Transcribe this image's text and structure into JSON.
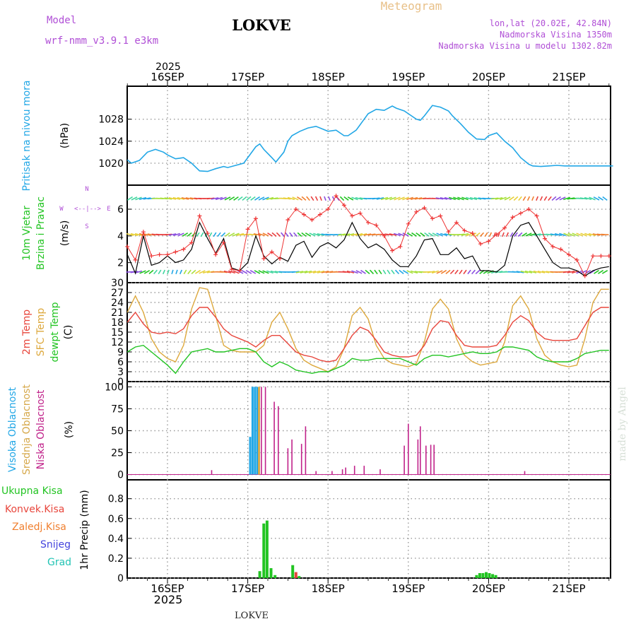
{
  "header": {
    "model_label": "Model",
    "model_name": "wrf-nmm_v3.9.1  e3km",
    "location": "LOKVE",
    "title": "Meteogram",
    "coords": "lon,lat (20.02E, 42.84N)",
    "elevation": "Nadmorska Visina 1350m",
    "model_elevation": "Nadmorska Visina u modelu 1302.82m"
  },
  "footer": {
    "location": "LOKVE",
    "credit": "made by Angel",
    "year": "2025"
  },
  "colors": {
    "pressure": "#22a7e6",
    "temp2m": "#e8463c",
    "sfc": "#dda83c",
    "dewpt": "#22c422",
    "gust": "#ee3333",
    "wind": "#000000",
    "high_cloud": "#22a7e6",
    "mid_cloud": "#d6a84a",
    "low_cloud": "#c0228a",
    "total_precip": "#22c422",
    "conv_precip": "#e8463c",
    "frz_precip": "#f08030",
    "snow": "#4444dd",
    "grad": "#22c4b4",
    "label_purple": "#b04fd6"
  },
  "panels": {
    "pressure": {
      "label_main": "Pritisak na nivou mora",
      "label_unit": "(hPa)"
    },
    "wind": {
      "label_main": "10m Vjetar",
      "label_sub": "Brzina i Pravac",
      "label_unit": "(m/s)",
      "compass_n": "N",
      "compass_w": "W",
      "compass_e": "E",
      "compass_s": "S",
      "compass_mark": "<--|-->"
    },
    "temp": {
      "label_2m": "2m Temp",
      "label_sfc": "SFC Temp",
      "label_dew": "dewpt Temp",
      "label_unit": "(C)"
    },
    "cloud": {
      "label_high": "Visoka Oblacnost",
      "label_mid": "Srednja Oblacnost",
      "label_low": "Niska Oblacnost",
      "label_unit": "(%)"
    },
    "precip": {
      "label_total": "Ukupna Kisa",
      "label_conv": "Konvek.Kisa",
      "label_frz": "Zaledj.Kisa",
      "label_snow": "Snijeg",
      "label_grad": "Grad",
      "label_unit": "1hr Precip (mm)"
    }
  },
  "chart_data": [
    {
      "type": "line",
      "title": "Pritisak na nivou mora",
      "ylabel": "(hPa)",
      "categories": [
        "16SEP",
        "17SEP",
        "18SEP",
        "19SEP",
        "20SEP",
        "21SEP"
      ],
      "x_start_day": -0.5,
      "x_end_day": 5.55,
      "ylim": [
        1016,
        1034
      ],
      "yticks": [
        1020,
        1024,
        1028
      ],
      "series": [
        {
          "name": "Pritisak",
          "x": [
            -0.5,
            -0.45,
            -0.35,
            -0.25,
            -0.15,
            -0.05,
            0,
            0.1,
            0.2,
            0.3,
            0.4,
            0.5,
            0.6,
            0.7,
            0.75,
            0.85,
            0.95,
            1,
            1.1,
            1.15,
            1.2,
            1.3,
            1.35,
            1.45,
            1.5,
            1.55,
            1.65,
            1.75,
            1.85,
            2,
            2.1,
            2.2,
            2.25,
            2.35,
            2.45,
            2.5,
            2.6,
            2.7,
            2.8,
            2.85,
            2.95,
            3,
            3.1,
            3.15,
            3.2,
            3.3,
            3.4,
            3.5,
            3.55,
            3.65,
            3.75,
            3.85,
            3.95,
            4,
            4.1,
            4.2,
            4.3,
            4.4,
            4.5,
            4.55,
            4.65,
            4.75,
            4.85,
            4.95,
            5.05,
            5.15,
            5.25,
            5.35,
            5.45,
            5.55
          ],
          "values": [
            1020.6,
            1020,
            1020.5,
            1022,
            1022.5,
            1022,
            1021.5,
            1020.8,
            1021,
            1020,
            1018.6,
            1018.5,
            1019,
            1019.4,
            1019.2,
            1019.6,
            1020,
            1021,
            1023,
            1023.5,
            1022.5,
            1021,
            1020.2,
            1022,
            1024,
            1025,
            1025.8,
            1026.4,
            1026.7,
            1025.8,
            1026,
            1025,
            1025,
            1026,
            1028,
            1029,
            1029.8,
            1029.6,
            1030.4,
            1030,
            1029.5,
            1029,
            1028,
            1027.8,
            1028.6,
            1030.5,
            1030.2,
            1029.5,
            1028.6,
            1027.2,
            1025.6,
            1024.4,
            1024.3,
            1025,
            1025.5,
            1024,
            1022.8,
            1021,
            1019.8,
            1019.5,
            1019.4,
            1019.5,
            1019.6,
            1019.5,
            1019.5,
            1019.5,
            1019.5,
            1019.5,
            1019.5,
            1019.5
          ]
        }
      ]
    },
    {
      "type": "line",
      "title": "10m Vjetar Brzina i Pravac",
      "ylabel": "(m/s)",
      "ylim": [
        0.5,
        7.8
      ],
      "yticks": [
        2,
        4,
        6
      ],
      "series": [
        {
          "name": "Brzina",
          "x": [
            -0.5,
            -0.4,
            -0.3,
            -0.2,
            -0.1,
            0,
            0.1,
            0.2,
            0.3,
            0.4,
            0.5,
            0.6,
            0.7,
            0.8,
            0.9,
            1,
            1.1,
            1.2,
            1.3,
            1.4,
            1.5,
            1.6,
            1.7,
            1.8,
            1.9,
            2,
            2.1,
            2.2,
            2.3,
            2.4,
            2.5,
            2.6,
            2.7,
            2.8,
            2.9,
            3,
            3.1,
            3.2,
            3.3,
            3.4,
            3.5,
            3.6,
            3.7,
            3.8,
            3.9,
            4,
            4.1,
            4.2,
            4.3,
            4.4,
            4.5,
            4.6,
            4.7,
            4.8,
            4.9,
            5,
            5.1,
            5.2,
            5.3,
            5.4,
            5.5
          ],
          "values": [
            2.6,
            1.2,
            4,
            1.8,
            2,
            2.5,
            2,
            2.2,
            3,
            5,
            3.8,
            2.7,
            3.8,
            1.6,
            1.4,
            2,
            4,
            2.5,
            1.9,
            2.4,
            2.1,
            3.3,
            3.6,
            2.4,
            3.2,
            3.5,
            3.1,
            3.7,
            5,
            3.8,
            3.1,
            3.4,
            3,
            2.2,
            1.7,
            1.7,
            2.5,
            3.7,
            3.8,
            2.6,
            2.6,
            3.1,
            2.3,
            2.5,
            1.4,
            1.4,
            1.3,
            1.8,
            4,
            4.8,
            5,
            4,
            3,
            2,
            1.6,
            1.6,
            1.4,
            1,
            1.4,
            1.6,
            1.7
          ]
        },
        {
          "name": "Udar",
          "x": [
            -0.5,
            -0.4,
            -0.3,
            -0.2,
            -0.1,
            0,
            0.1,
            0.2,
            0.3,
            0.4,
            0.5,
            0.6,
            0.7,
            0.8,
            0.9,
            1,
            1.1,
            1.2,
            1.3,
            1.4,
            1.5,
            1.6,
            1.7,
            1.8,
            1.9,
            2,
            2.1,
            2.2,
            2.3,
            2.4,
            2.5,
            2.6,
            2.7,
            2.8,
            2.9,
            3,
            3.1,
            3.2,
            3.3,
            3.4,
            3.5,
            3.6,
            3.7,
            3.8,
            3.9,
            4,
            4.1,
            4.2,
            4.3,
            4.4,
            4.5,
            4.6,
            4.7,
            4.8,
            4.9,
            5,
            5.1,
            5.2,
            5.3,
            5.4,
            5.5
          ],
          "values": [
            3.2,
            2.2,
            4.3,
            2.5,
            2.6,
            2.6,
            2.8,
            3,
            3.5,
            5.5,
            4.2,
            2.6,
            3.5,
            1.5,
            1.4,
            4.5,
            5.3,
            2.3,
            2.8,
            2.3,
            5.2,
            6,
            5.6,
            5.2,
            5.6,
            6,
            7,
            6.3,
            5.5,
            5.7,
            5,
            4.8,
            4,
            2.9,
            3.2,
            4.9,
            5.8,
            6.1,
            5.3,
            5.5,
            4.3,
            5,
            4.4,
            4.2,
            3.4,
            3.6,
            4.1,
            4.6,
            5.4,
            5.7,
            6,
            5.5,
            3.8,
            3.2,
            3,
            2.6,
            2.2,
            1,
            2.5,
            2.5,
            2.5
          ]
        }
      ]
    },
    {
      "type": "line",
      "title": "Temperatura",
      "ylabel": "(C)",
      "ylim": [
        0,
        30
      ],
      "yticks": [
        0,
        3,
        6,
        9,
        12,
        15,
        18,
        21,
        24,
        27,
        30
      ],
      "series": [
        {
          "name": "2m Temp",
          "x": [
            -0.5,
            -0.4,
            -0.3,
            -0.2,
            -0.1,
            0,
            0.1,
            0.2,
            0.3,
            0.4,
            0.5,
            0.6,
            0.7,
            0.8,
            0.9,
            1,
            1.1,
            1.2,
            1.3,
            1.4,
            1.5,
            1.6,
            1.7,
            1.8,
            1.9,
            2,
            2.1,
            2.2,
            2.3,
            2.4,
            2.5,
            2.6,
            2.7,
            2.8,
            2.9,
            3,
            3.1,
            3.2,
            3.3,
            3.4,
            3.5,
            3.6,
            3.7,
            3.8,
            3.9,
            4,
            4.1,
            4.2,
            4.3,
            4.4,
            4.5,
            4.6,
            4.7,
            4.8,
            4.9,
            5,
            5.1,
            5.2,
            5.3,
            5.4,
            5.5
          ],
          "values": [
            18,
            21,
            17.5,
            15,
            14.5,
            15,
            14.5,
            16,
            20,
            22.5,
            22.5,
            19.5,
            16,
            14,
            13,
            12,
            10.5,
            12.5,
            14,
            14,
            11.5,
            9,
            8,
            7.5,
            6.5,
            6,
            6.5,
            10,
            14,
            16.5,
            15.5,
            12.5,
            9,
            8,
            7.5,
            7.5,
            8,
            11,
            16,
            18.5,
            18,
            14,
            11,
            10.5,
            10.5,
            10.5,
            11,
            14,
            18,
            20,
            18.5,
            15,
            13,
            12.5,
            12.5,
            12.5,
            13,
            17,
            21,
            22.5,
            22.5
          ]
        },
        {
          "name": "SFC Temp",
          "x": [
            -0.5,
            -0.4,
            -0.3,
            -0.2,
            -0.1,
            0,
            0.1,
            0.2,
            0.3,
            0.4,
            0.5,
            0.6,
            0.7,
            0.8,
            0.9,
            1,
            1.1,
            1.2,
            1.3,
            1.4,
            1.5,
            1.6,
            1.7,
            1.8,
            1.9,
            2,
            2.1,
            2.2,
            2.3,
            2.4,
            2.5,
            2.6,
            2.7,
            2.8,
            2.9,
            3,
            3.1,
            3.2,
            3.3,
            3.4,
            3.5,
            3.6,
            3.7,
            3.8,
            3.9,
            4,
            4.1,
            4.2,
            4.3,
            4.4,
            4.5,
            4.6,
            4.7,
            4.8,
            4.9,
            5,
            5.1,
            5.2,
            5.3,
            5.4,
            5.5
          ],
          "values": [
            21,
            26,
            21,
            13,
            9,
            7,
            6,
            11,
            22,
            28.5,
            28,
            20,
            11,
            9.5,
            9,
            9,
            9,
            11,
            18,
            21,
            16,
            10,
            6.5,
            5,
            4,
            3,
            4.5,
            10,
            20,
            22.5,
            19,
            11,
            7,
            5.5,
            5,
            4.5,
            5.5,
            12,
            22,
            25,
            22,
            13,
            8,
            6,
            5,
            5.5,
            6,
            12,
            23,
            26,
            22,
            13,
            8,
            6,
            5,
            4.5,
            5,
            13,
            24,
            28,
            28
          ]
        },
        {
          "name": "dewpt Temp",
          "x": [
            -0.5,
            -0.4,
            -0.3,
            -0.2,
            -0.1,
            0,
            0.1,
            0.2,
            0.3,
            0.4,
            0.5,
            0.6,
            0.7,
            0.8,
            0.9,
            1,
            1.1,
            1.2,
            1.3,
            1.4,
            1.5,
            1.6,
            1.7,
            1.8,
            1.9,
            2,
            2.1,
            2.2,
            2.3,
            2.4,
            2.5,
            2.6,
            2.7,
            2.8,
            2.9,
            3,
            3.1,
            3.2,
            3.3,
            3.4,
            3.5,
            3.6,
            3.7,
            3.8,
            3.9,
            4,
            4.1,
            4.2,
            4.3,
            4.4,
            4.5,
            4.6,
            4.7,
            4.8,
            4.9,
            5,
            5.1,
            5.2,
            5.3,
            5.4,
            5.5
          ],
          "values": [
            9,
            10.5,
            11,
            9,
            7,
            5,
            2.5,
            6,
            9,
            9.5,
            10,
            9,
            9,
            9.5,
            10,
            10,
            9,
            6,
            4.5,
            6,
            5,
            3.5,
            3,
            2.5,
            3,
            3,
            4,
            5,
            7,
            6.5,
            6.5,
            7,
            7,
            7,
            7,
            6,
            5,
            7,
            8,
            8,
            7.5,
            8,
            8.5,
            9,
            8.5,
            8.5,
            9,
            10.5,
            10.5,
            10,
            9.5,
            7.5,
            6.5,
            6,
            6,
            6,
            7,
            8.5,
            9,
            9.5,
            9.5
          ]
        }
      ]
    },
    {
      "type": "bar",
      "title": "Oblacnost",
      "ylabel": "(%)",
      "ylim": [
        -6,
        106
      ],
      "yticks": [
        0,
        25,
        50,
        75,
        100
      ],
      "series": [
        {
          "name": "Visoka Oblacnost",
          "x": [
            1.03,
            1.06,
            1.09,
            1.12
          ],
          "values": [
            43,
            100,
            100,
            100
          ]
        },
        {
          "name": "Srednja Oblacnost",
          "x": [
            1.14
          ],
          "values": [
            100
          ]
        },
        {
          "name": "Niska Oblacnost",
          "x": [
            0.55,
            1.17,
            1.22,
            1.33,
            1.38,
            1.5,
            1.55,
            1.67,
            1.72,
            1.85,
            2.05,
            2.18,
            2.22,
            2.33,
            2.45,
            2.65,
            2.95,
            3.0,
            3.12,
            3.15,
            3.22,
            3.28,
            3.32,
            4.45
          ],
          "values": [
            5,
            100,
            100,
            83,
            78,
            30,
            40,
            35,
            55,
            4,
            4,
            6,
            8,
            10,
            10,
            6,
            33,
            58,
            40,
            55,
            33,
            34,
            34,
            4
          ]
        }
      ]
    },
    {
      "type": "bar",
      "title": "1hr Precip",
      "ylabel": "1hr Precip (mm)",
      "ylim": [
        0,
        0.99
      ],
      "yticks": [
        0,
        0.2,
        0.4,
        0.6,
        0.8
      ],
      "series": [
        {
          "name": "Ukupna Kisa",
          "x": [
            1.15,
            1.2,
            1.24,
            1.29,
            1.34,
            1.56,
            1.64,
            3.85,
            3.89,
            3.93,
            3.97,
            4.01,
            4.05,
            4.09
          ],
          "values": [
            0.07,
            0.55,
            0.58,
            0.1,
            0.03,
            0.13,
            0.02,
            0.03,
            0.05,
            0.05,
            0.06,
            0.05,
            0.04,
            0.03
          ]
        },
        {
          "name": "Konvek.Kisa",
          "x": [
            1.6
          ],
          "values": [
            0.06
          ]
        },
        {
          "name": "Zaledj.Kisa",
          "x": [],
          "values": []
        },
        {
          "name": "Snijeg",
          "x": [],
          "values": []
        },
        {
          "name": "Grad",
          "x": [],
          "values": []
        }
      ]
    }
  ]
}
